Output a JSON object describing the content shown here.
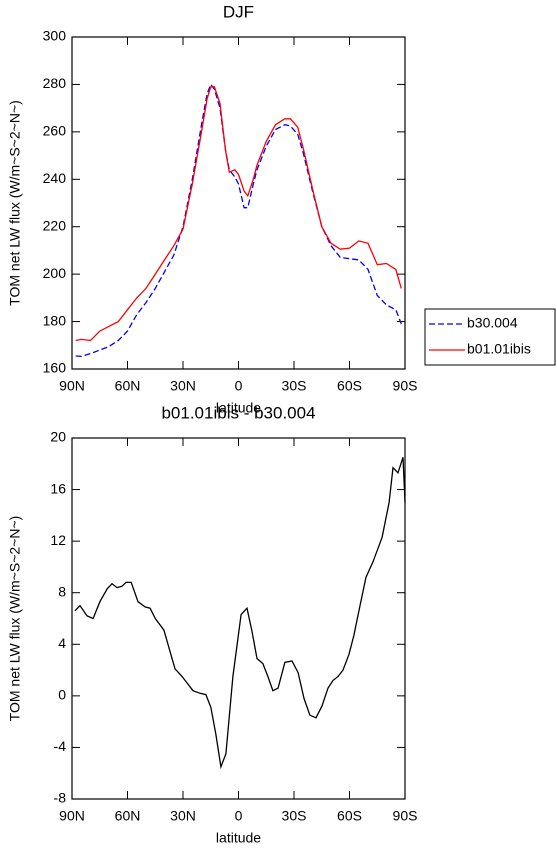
{
  "chart_data": [
    {
      "type": "line",
      "title": "DJF",
      "xlabel": "latitude",
      "ylabel": "TOM net LW flux (W/m~S~2~N~)",
      "x": [
        88,
        85,
        80,
        75,
        70,
        65,
        60,
        55,
        50,
        45,
        40,
        35,
        30,
        25,
        20,
        17,
        15,
        13,
        10,
        7,
        5,
        2,
        0,
        -3,
        -5,
        -8,
        -10,
        -15,
        -20,
        -25,
        -28,
        -32,
        -35,
        -40,
        -45,
        -50,
        -55,
        -60,
        -65,
        -70,
        -75,
        -80,
        -85,
        -88
      ],
      "series": [
        {
          "name": "b30.004",
          "color": "#0000ff",
          "line_style": "dashed",
          "values": [
            165.5,
            165.3,
            166.5,
            168,
            169.5,
            172,
            176,
            183,
            188,
            194,
            201,
            208,
            220,
            240,
            263,
            276,
            280,
            278,
            270,
            252,
            244,
            241,
            238,
            228,
            228,
            238,
            244,
            254,
            261,
            263,
            262.5,
            259,
            251,
            235,
            220,
            212,
            207,
            206.5,
            206,
            202,
            191,
            187,
            185,
            179
          ]
        },
        {
          "name": "b01.01ibis",
          "color": "#ff0000",
          "line_style": "solid",
          "values": [
            172,
            172.5,
            172,
            176,
            178,
            180,
            185,
            190,
            194,
            200,
            206,
            212,
            219,
            238,
            260,
            274,
            279,
            279,
            272,
            252,
            243,
            244,
            242,
            235,
            233,
            240,
            246,
            256,
            263,
            265.5,
            265.5,
            262,
            253,
            236,
            220,
            213,
            210.5,
            211,
            214,
            213,
            204,
            204.5,
            202,
            194
          ]
        }
      ],
      "xlim": [
        90,
        -90
      ],
      "xticks": [
        {
          "value": 90,
          "label": "90N"
        },
        {
          "value": 60,
          "label": "60N"
        },
        {
          "value": 30,
          "label": "30N"
        },
        0,
        {
          "value": -30,
          "label": "30S"
        },
        {
          "value": -60,
          "label": "60S"
        },
        {
          "value": -90,
          "label": "90S"
        }
      ],
      "ylim": [
        160,
        300
      ],
      "yticks": [
        160,
        180,
        200,
        220,
        240,
        260,
        280,
        300
      ],
      "legend": "right",
      "grid": false
    },
    {
      "type": "line",
      "title": "b01.01ibis - b30.004",
      "xlabel": "latitude",
      "ylabel": "TOM net LW flux (W/m~S~2~N~)",
      "x": [
        88.4,
        85.7,
        81.9,
        78.6,
        74.9,
        71,
        68.4,
        65.7,
        63,
        60.8,
        58,
        54.3,
        50.5,
        47.8,
        45,
        40.3,
        34.3,
        30.5,
        24.6,
        20.8,
        17.6,
        14.9,
        12.2,
        9.5,
        6.8,
        3,
        -1.4,
        -4.6,
        -7.3,
        -10,
        -13.2,
        -15.9,
        -18.6,
        -21.4,
        -25.1,
        -28.9,
        -32.2,
        -35.4,
        -38.6,
        -41.9,
        -45.1,
        -48.4,
        -51.1,
        -53.8,
        -56.5,
        -59.7,
        -62.4,
        -65.7,
        -68.9,
        -72.7,
        -77.6,
        -81.4,
        -83.5,
        -86.2,
        -88.9,
        -90
      ],
      "color": "#000000",
      "values": [
        6.6,
        7.0,
        6.2,
        6.0,
        7.3,
        8.3,
        8.7,
        8.4,
        8.5,
        8.8,
        8.8,
        7.3,
        6.9,
        6.8,
        6.0,
        5.1,
        2.1,
        1.5,
        0.4,
        0.2,
        0.1,
        -0.9,
        -3.0,
        -5.5,
        -4.5,
        1.5,
        6.3,
        6.8,
        5.0,
        2.9,
        2.5,
        1.5,
        0.4,
        0.6,
        2.6,
        2.7,
        1.8,
        -0.2,
        -1.5,
        -1.7,
        -0.8,
        0.6,
        1.2,
        1.5,
        2.0,
        3.2,
        4.7,
        7.0,
        9.2,
        10.4,
        12.3,
        15.0,
        17.7,
        17.3,
        18.5,
        15.0
      ],
      "xlim": [
        90,
        -90
      ],
      "xticks": [
        {
          "value": 90,
          "label": "90N"
        },
        {
          "value": 60,
          "label": "60N"
        },
        {
          "value": 30,
          "label": "30N"
        },
        0,
        {
          "value": -30,
          "label": "30S"
        },
        {
          "value": -60,
          "label": "60S"
        },
        {
          "value": -90,
          "label": "90S"
        }
      ],
      "ylim": [
        -8,
        20
      ],
      "yticks": [
        -8,
        -4,
        0,
        4,
        8,
        12,
        16,
        20
      ],
      "grid": false
    }
  ]
}
